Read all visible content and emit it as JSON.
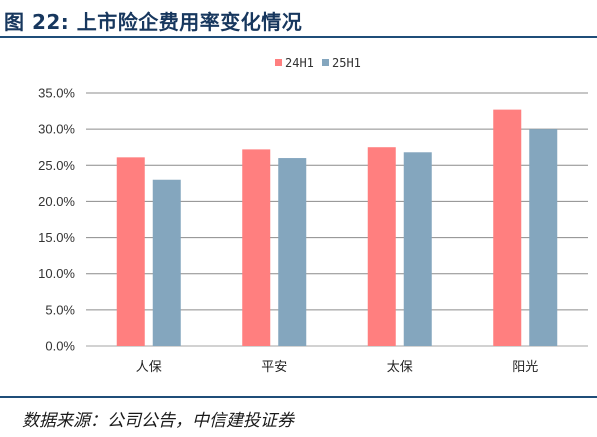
{
  "figure": {
    "title": "图 22:  上市险企费用率变化情况",
    "source": "数据来源：公司公告，中信建投证券"
  },
  "colors": {
    "series_1": "#ff7f7f",
    "series_2": "#84a6be",
    "grid": "#8c8c8c",
    "axis": "#a6a6a6",
    "title": "#17375e",
    "rule": "#1f4e79"
  },
  "chart_data": {
    "type": "bar",
    "categories": [
      "人保",
      "平安",
      "太保",
      "阳光"
    ],
    "series": [
      {
        "name": "24H1",
        "values": [
          26.1,
          27.2,
          27.5,
          32.7
        ]
      },
      {
        "name": "25H1",
        "values": [
          23.0,
          26.0,
          26.8,
          30.0
        ]
      }
    ],
    "ylim": [
      0,
      35
    ],
    "y_ticks": [
      "0.0%",
      "5.0%",
      "10.0%",
      "15.0%",
      "20.0%",
      "25.0%",
      "30.0%",
      "35.0%"
    ],
    "grid": true,
    "legend_position": "top-center"
  }
}
